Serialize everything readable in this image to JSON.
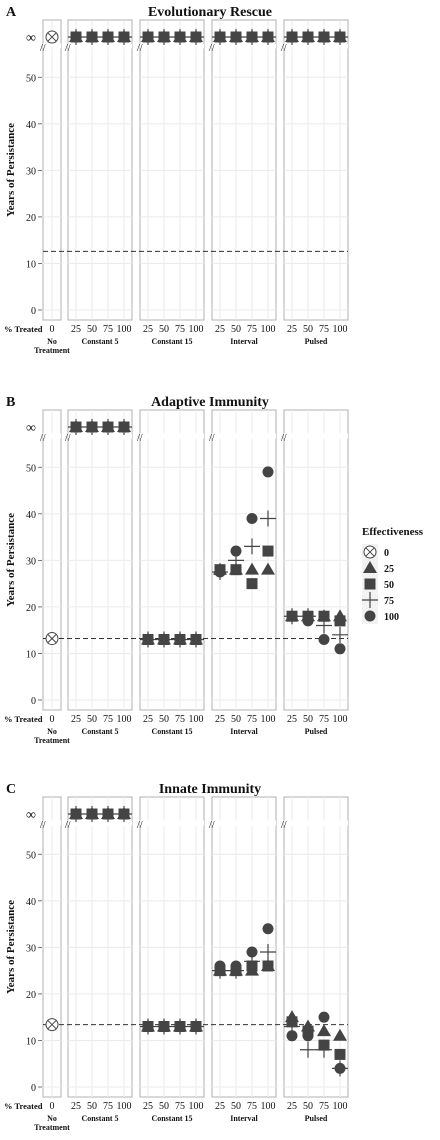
{
  "figure": {
    "y_axis_label": "Years of Persistance",
    "x_row_label": "% Treated",
    "infinity_label": "∞",
    "groups": [
      "No Treatment",
      "Constant 5",
      "Constant 15",
      "Interval",
      "Pulsed"
    ],
    "treated_ticks": [
      "25",
      "50",
      "75",
      "100"
    ],
    "no_treatment_tick": "0",
    "y_ticks": [
      0,
      10,
      20,
      30,
      40,
      50
    ],
    "legend": {
      "title": "Effectiveness",
      "entries": [
        {
          "label": "0",
          "shape": "crossed-circle"
        },
        {
          "label": "25",
          "shape": "triangle"
        },
        {
          "label": "50",
          "shape": "square"
        },
        {
          "label": "75",
          "shape": "plus"
        },
        {
          "label": "100",
          "shape": "circle"
        }
      ],
      "placement": "right"
    },
    "colors": {
      "marker": "#444444",
      "panel_border": "#b0b0b0",
      "grid": "#ebebeb",
      "dashed_line": "#333333"
    }
  },
  "chart_data": [
    {
      "panel": "A",
      "title": "Evolutionary Rescue",
      "type": "scatter",
      "ylim": [
        0,
        55
      ],
      "reference_line": 12.6,
      "no_treatment": {
        "effectiveness": 0,
        "value": "∞"
      },
      "series": {
        "Constant 5": {
          "value_all": "∞"
        },
        "Constant 15": {
          "value_all": "∞"
        },
        "Interval": {
          "value_all": "∞"
        },
        "Pulsed": {
          "value_all": "∞"
        }
      }
    },
    {
      "panel": "B",
      "title": "Adaptive Immunity",
      "type": "scatter",
      "ylim": [
        0,
        55
      ],
      "reference_line": 13.2,
      "no_treatment": {
        "effectiveness": 0,
        "value": 13.2
      },
      "series": {
        "Constant 5": {
          "value_all": "∞"
        },
        "Constant 15": {
          "points": {
            "25": [
              13,
              13,
              13,
              13
            ],
            "50": [
              13,
              13,
              13,
              13
            ],
            "75": [
              13,
              13,
              13,
              13
            ],
            "100": [
              13,
              13,
              13,
              13
            ]
          }
        },
        "Interval": {
          "points": {
            "25": [
              28,
              28,
              27.5,
              27.5
            ],
            "50": [
              28,
              28,
              30,
              32
            ],
            "75": [
              28,
              25,
              33,
              39
            ],
            "100": [
              28,
              32,
              39,
              49
            ]
          }
        },
        "Pulsed": {
          "points": {
            "25": [
              18,
              18,
              18,
              18
            ],
            "50": [
              18,
              18,
              18,
              17
            ],
            "75": [
              18,
              18,
              16,
              13
            ],
            "100": [
              18,
              17,
              14,
              11
            ]
          }
        }
      }
    },
    {
      "panel": "C",
      "title": "Innate Immunity",
      "type": "scatter",
      "ylim": [
        0,
        55
      ],
      "reference_line": 13.4,
      "no_treatment": {
        "effectiveness": 0,
        "value": 13.4
      },
      "series": {
        "Constant 5": {
          "value_all": "∞"
        },
        "Constant 15": {
          "points": {
            "25": [
              13,
              13,
              13,
              13
            ],
            "50": [
              13,
              13,
              13,
              13
            ],
            "75": [
              13,
              13,
              13,
              13
            ],
            "100": [
              13,
              13,
              13,
              13
            ]
          }
        },
        "Interval": {
          "points": {
            "25": [
              25,
              25,
              25,
              26
            ],
            "50": [
              25,
              25,
              25,
              26
            ],
            "75": [
              25,
              26,
              27,
              29
            ],
            "100": [
              26,
              26,
              29,
              34
            ]
          }
        },
        "Pulsed": {
          "points": {
            "25": [
              15,
              14,
              13,
              11
            ],
            "50": [
              13,
              12,
              8,
              11
            ],
            "75": [
              12,
              9,
              8,
              15
            ],
            "100": [
              11,
              7,
              4,
              4
            ]
          }
        }
      }
    }
  ]
}
